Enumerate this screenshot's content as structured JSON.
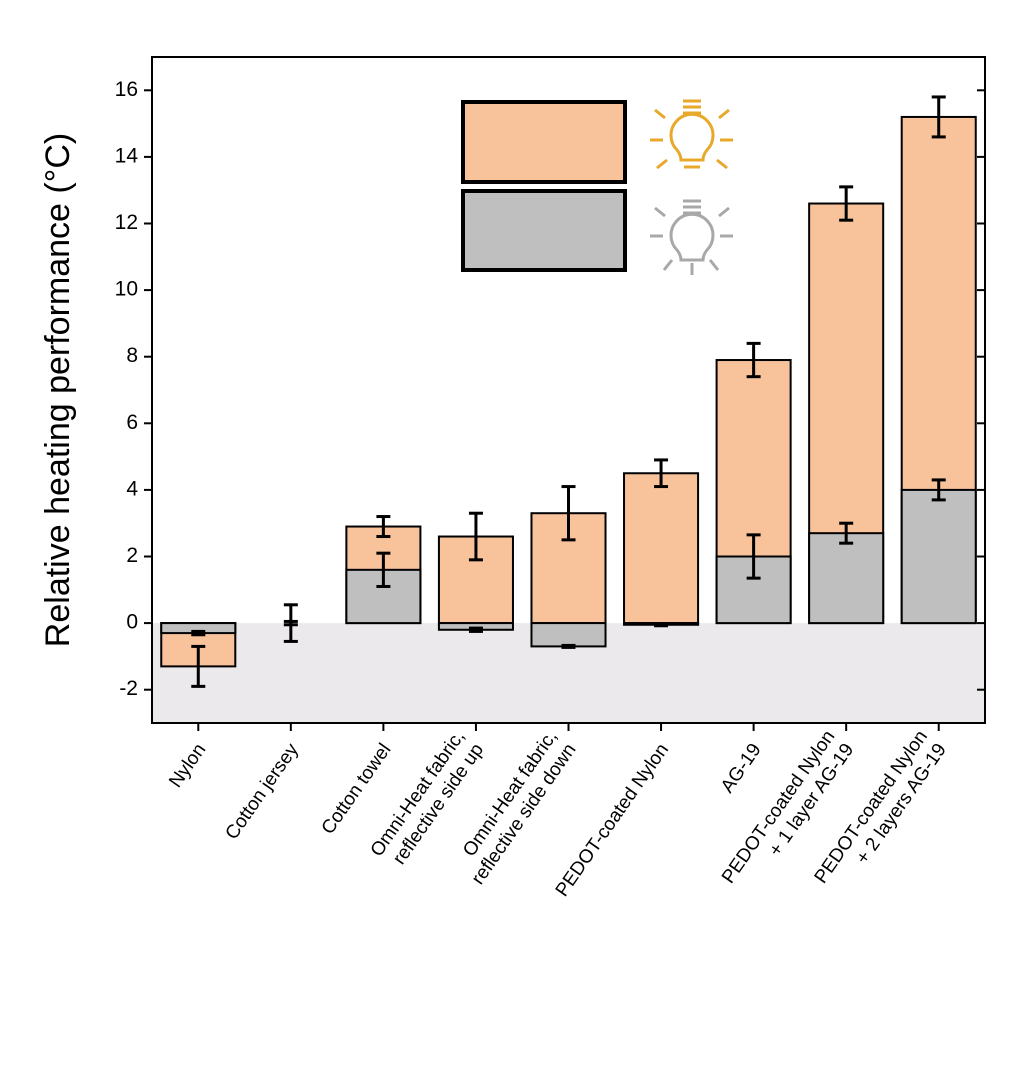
{
  "chart_data": {
    "type": "bar",
    "y_label": "Relative heating performance (°C)",
    "categories": [
      [
        "Nylon"
      ],
      [
        "Cotton jersey"
      ],
      [
        "Cotton towel"
      ],
      [
        "Omni-Heat fabric,",
        "reflective side up"
      ],
      [
        "Omni-Heat fabric,",
        "reflective side down"
      ],
      [
        "PEDOT-coated Nylon"
      ],
      [
        "AG-19"
      ],
      [
        "PEDOT-coated Nylon",
        "+ 1 layer AG-19"
      ],
      [
        "PEDOT-coated Nylon",
        "+ 2 layers AG-19"
      ]
    ],
    "series": [
      {
        "color": "#f8c29a",
        "values": [
          -1.3,
          0,
          2.9,
          2.6,
          3.3,
          4.5,
          7.9,
          12.6,
          15.2
        ],
        "errors": [
          0.6,
          0.55,
          0.3,
          0.7,
          0.8,
          0.4,
          0.5,
          0.5,
          0.6
        ]
      },
      {
        "color": "#bfbfbf",
        "values": [
          -0.3,
          0,
          1.6,
          -0.2,
          -0.7,
          -0.05,
          2.0,
          2.7,
          4.0
        ],
        "errors": [
          0.05,
          0.05,
          0.5,
          0.05,
          0.03,
          0.03,
          0.65,
          0.3,
          0.3
        ]
      }
    ],
    "ylim": [
      -3,
      17
    ],
    "yticks": [
      -2,
      0,
      2,
      4,
      6,
      8,
      10,
      12,
      14,
      16
    ],
    "negative_shade": "#ebe9eb"
  }
}
